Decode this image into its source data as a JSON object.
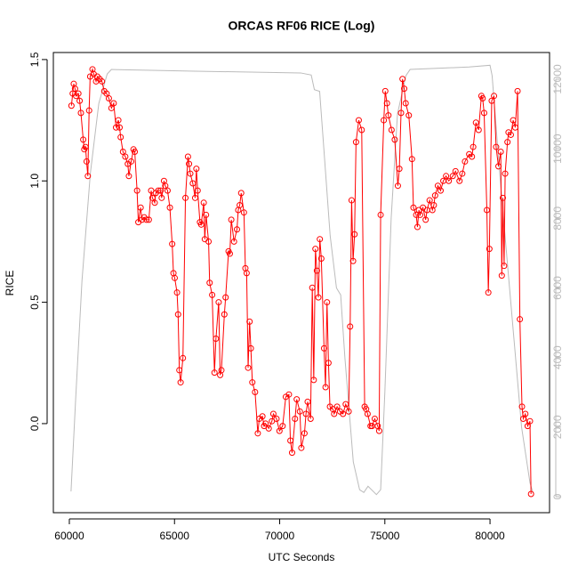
{
  "chart_data": {
    "type": "line",
    "title": "ORCAS RF06 RICE (Log)",
    "x_label": "UTC Seconds",
    "y_label": "RICE",
    "xlim": [
      59240,
      82830
    ],
    "xticks": [
      60000,
      65000,
      70000,
      75000,
      80000
    ],
    "ylim": [
      -0.367,
      1.529
    ],
    "yticks": [
      {
        "value": 0,
        "label": "0.0"
      },
      0.5,
      {
        "value": 1,
        "label": "1.0"
      },
      1.5
    ],
    "y2lim": [
      -460,
      12767
    ],
    "y2ticks": [
      0,
      2000,
      4000,
      6000,
      8000,
      10000,
      12000
    ],
    "y2_color": "#bbbbbb",
    "series": [
      {
        "color": "#ff0000",
        "markers": "circle",
        "x": [
          60100,
          60160,
          60210,
          60270,
          60320,
          60430,
          60490,
          60550,
          60660,
          60710,
          60770,
          60820,
          60880,
          60940,
          60990,
          61100,
          61160,
          61270,
          61330,
          61440,
          61550,
          61660,
          61770,
          61880,
          62000,
          62110,
          62220,
          62330,
          62390,
          62440,
          62550,
          62660,
          62780,
          62830,
          62940,
          63050,
          63110,
          63220,
          63280,
          63390,
          63450,
          63560,
          63670,
          63780,
          63890,
          63950,
          64060,
          64110,
          64230,
          64340,
          64390,
          64500,
          64560,
          64670,
          64780,
          64890,
          64950,
          65010,
          65120,
          65170,
          65230,
          65290,
          65400,
          65520,
          65640,
          65690,
          65750,
          65870,
          65980,
          66040,
          66100,
          66210,
          66270,
          66390,
          66440,
          66500,
          66620,
          66670,
          66790,
          66900,
          66970,
          67100,
          67170,
          67230,
          67370,
          67430,
          67570,
          67630,
          67700,
          67830,
          67970,
          68030,
          68100,
          68170,
          68300,
          68370,
          68430,
          68500,
          68570,
          68630,
          68700,
          68830,
          68960,
          69030,
          69180,
          69260,
          69330,
          69480,
          69630,
          69700,
          69850,
          69990,
          70140,
          70290,
          70440,
          70510,
          70590,
          70730,
          70810,
          70960,
          71030,
          71180,
          71250,
          71330,
          71470,
          71550,
          71620,
          71700,
          71770,
          71840,
          71910,
          71980,
          72110,
          72180,
          72250,
          72320,
          72390,
          72530,
          72590,
          72730,
          72870,
          73010,
          73140,
          73280,
          73350,
          73420,
          73490,
          73560,
          73630,
          73760,
          73900,
          74040,
          74110,
          74180,
          74320,
          74390,
          74520,
          74660,
          74730,
          74800,
          74950,
          75020,
          75100,
          75170,
          75320,
          75470,
          75620,
          75690,
          75770,
          75840,
          75920,
          75990,
          76140,
          76290,
          76360,
          76490,
          76550,
          76620,
          76680,
          76810,
          76940,
          77010,
          77130,
          77260,
          77330,
          77390,
          77520,
          77650,
          77780,
          77910,
          78040,
          78230,
          78360,
          78550,
          78680,
          78810,
          79010,
          79140,
          79200,
          79330,
          79460,
          79590,
          79650,
          79720,
          79850,
          79920,
          79970,
          80080,
          80190,
          80290,
          80400,
          80510,
          80560,
          80610,
          80670,
          80720,
          80830,
          80880,
          80990,
          81100,
          81200,
          81310,
          81420,
          81520,
          81580,
          81680,
          81790,
          81900,
          81950
        ],
        "values": [
          1.31,
          1.36,
          1.4,
          1.38,
          1.35,
          1.36,
          1.33,
          1.28,
          1.17,
          1.13,
          1.14,
          1.08,
          1.02,
          1.29,
          1.43,
          1.46,
          1.44,
          1.41,
          1.43,
          1.42,
          1.41,
          1.37,
          1.36,
          1.34,
          1.3,
          1.32,
          1.22,
          1.25,
          1.22,
          1.18,
          1.12,
          1.1,
          1.07,
          1.02,
          1.08,
          1.13,
          1.12,
          0.96,
          0.83,
          0.89,
          0.84,
          0.85,
          0.84,
          0.84,
          0.96,
          0.93,
          0.91,
          0.95,
          0.96,
          0.96,
          0.93,
          1.0,
          0.98,
          0.96,
          0.89,
          0.74,
          0.62,
          0.6,
          0.54,
          0.45,
          0.22,
          0.17,
          0.27,
          0.93,
          1.1,
          1.07,
          1.03,
          0.99,
          0.93,
          1.05,
          0.96,
          0.83,
          0.82,
          0.91,
          0.76,
          0.86,
          0.75,
          0.58,
          0.53,
          0.21,
          0.35,
          0.5,
          0.2,
          0.22,
          0.45,
          0.52,
          0.71,
          0.7,
          0.84,
          0.75,
          0.8,
          0.88,
          0.9,
          0.95,
          0.87,
          0.64,
          0.62,
          0.23,
          0.42,
          0.31,
          0.17,
          0.13,
          -0.04,
          0.02,
          0.03,
          -0.01,
          0.0,
          -0.02,
          0.01,
          0.04,
          0.02,
          -0.03,
          -0.01,
          0.11,
          0.12,
          -0.07,
          -0.12,
          0.02,
          0.1,
          0.05,
          -0.1,
          -0.04,
          0.04,
          0.09,
          0.02,
          0.56,
          0.18,
          0.72,
          0.63,
          0.52,
          0.76,
          0.68,
          0.31,
          0.15,
          0.5,
          0.25,
          0.07,
          0.06,
          0.04,
          0.07,
          0.05,
          0.04,
          0.08,
          0.05,
          0.4,
          0.92,
          0.67,
          0.78,
          1.16,
          1.25,
          1.21,
          0.07,
          0.06,
          0.04,
          -0.01,
          -0.01,
          0.02,
          -0.01,
          -0.03,
          0.86,
          1.25,
          1.37,
          1.32,
          1.27,
          1.21,
          1.17,
          0.98,
          1.05,
          1.28,
          1.42,
          1.38,
          1.32,
          1.27,
          1.09,
          0.89,
          0.86,
          0.81,
          0.88,
          0.86,
          0.89,
          0.84,
          0.88,
          0.92,
          0.88,
          0.9,
          0.94,
          0.98,
          0.96,
          1.0,
          1.02,
          1.0,
          1.02,
          1.04,
          1.0,
          1.03,
          1.08,
          1.11,
          1.1,
          1.14,
          1.24,
          1.21,
          1.35,
          1.34,
          1.28,
          0.88,
          0.54,
          0.72,
          1.33,
          1.35,
          1.14,
          1.06,
          1.12,
          0.61,
          0.93,
          0.65,
          1.03,
          1.16,
          1.2,
          1.19,
          1.25,
          1.22,
          1.37,
          0.43,
          0.07,
          0.02,
          0.04,
          -0.01,
          0.01,
          -0.29
        ]
      },
      {
        "color": "#bbbbbb",
        "axis": "y2",
        "x": [
          60080,
          60300,
          60600,
          61000,
          61400,
          61800,
          62000,
          66000,
          71000,
          71500,
          71650,
          71900,
          72100,
          72400,
          72700,
          72900,
          73100,
          73500,
          73800,
          74000,
          74200,
          74600,
          74800,
          75000,
          75300,
          75600,
          76000,
          76200,
          79000,
          80000,
          80100,
          80500,
          81000,
          81500,
          81900,
          82050
        ],
        "values": [
          150,
          2800,
          6200,
          9300,
          11300,
          12150,
          12280,
          12230,
          12180,
          12120,
          11700,
          11650,
          10000,
          7500,
          6000,
          5800,
          4000,
          1000,
          200,
          120,
          300,
          60,
          200,
          3000,
          8000,
          11000,
          12100,
          12280,
          12350,
          12400,
          12100,
          9000,
          5500,
          2000,
          400,
          100
        ]
      }
    ]
  }
}
